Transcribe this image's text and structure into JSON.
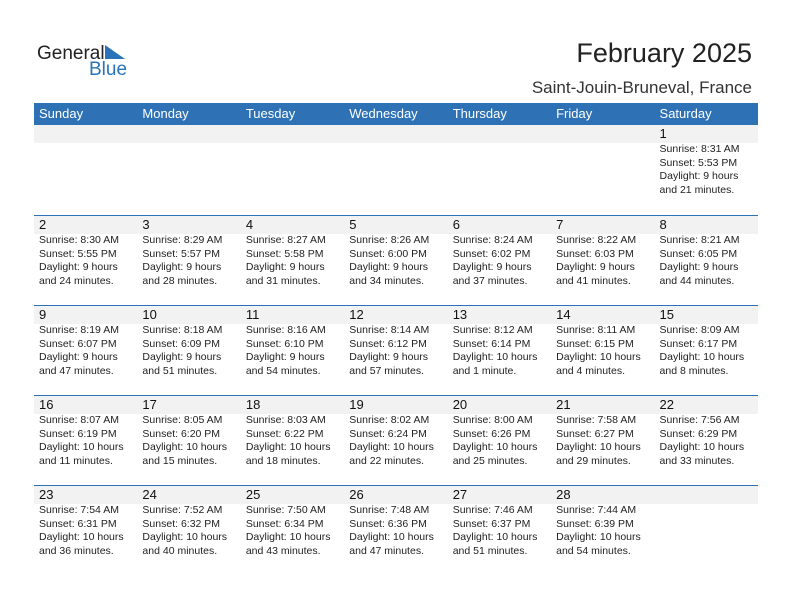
{
  "logo": {
    "general": "General",
    "blue": "Blue"
  },
  "title": "February 2025",
  "location": "Saint-Jouin-Bruneval, France",
  "colors": {
    "accent": "#2e72b5",
    "band": "#f2f2f2"
  },
  "weekdays": [
    "Sunday",
    "Monday",
    "Tuesday",
    "Wednesday",
    "Thursday",
    "Friday",
    "Saturday"
  ],
  "weeks": [
    [
      null,
      null,
      null,
      null,
      null,
      null,
      {
        "day": "1",
        "sunrise": "Sunrise: 8:31 AM",
        "sunset": "Sunset: 5:53 PM",
        "daylight": "Daylight: 9 hours",
        "minutes": "and 21 minutes."
      }
    ],
    [
      {
        "day": "2",
        "sunrise": "Sunrise: 8:30 AM",
        "sunset": "Sunset: 5:55 PM",
        "daylight": "Daylight: 9 hours",
        "minutes": "and 24 minutes."
      },
      {
        "day": "3",
        "sunrise": "Sunrise: 8:29 AM",
        "sunset": "Sunset: 5:57 PM",
        "daylight": "Daylight: 9 hours",
        "minutes": "and 28 minutes."
      },
      {
        "day": "4",
        "sunrise": "Sunrise: 8:27 AM",
        "sunset": "Sunset: 5:58 PM",
        "daylight": "Daylight: 9 hours",
        "minutes": "and 31 minutes."
      },
      {
        "day": "5",
        "sunrise": "Sunrise: 8:26 AM",
        "sunset": "Sunset: 6:00 PM",
        "daylight": "Daylight: 9 hours",
        "minutes": "and 34 minutes."
      },
      {
        "day": "6",
        "sunrise": "Sunrise: 8:24 AM",
        "sunset": "Sunset: 6:02 PM",
        "daylight": "Daylight: 9 hours",
        "minutes": "and 37 minutes."
      },
      {
        "day": "7",
        "sunrise": "Sunrise: 8:22 AM",
        "sunset": "Sunset: 6:03 PM",
        "daylight": "Daylight: 9 hours",
        "minutes": "and 41 minutes."
      },
      {
        "day": "8",
        "sunrise": "Sunrise: 8:21 AM",
        "sunset": "Sunset: 6:05 PM",
        "daylight": "Daylight: 9 hours",
        "minutes": "and 44 minutes."
      }
    ],
    [
      {
        "day": "9",
        "sunrise": "Sunrise: 8:19 AM",
        "sunset": "Sunset: 6:07 PM",
        "daylight": "Daylight: 9 hours",
        "minutes": "and 47 minutes."
      },
      {
        "day": "10",
        "sunrise": "Sunrise: 8:18 AM",
        "sunset": "Sunset: 6:09 PM",
        "daylight": "Daylight: 9 hours",
        "minutes": "and 51 minutes."
      },
      {
        "day": "11",
        "sunrise": "Sunrise: 8:16 AM",
        "sunset": "Sunset: 6:10 PM",
        "daylight": "Daylight: 9 hours",
        "minutes": "and 54 minutes."
      },
      {
        "day": "12",
        "sunrise": "Sunrise: 8:14 AM",
        "sunset": "Sunset: 6:12 PM",
        "daylight": "Daylight: 9 hours",
        "minutes": "and 57 minutes."
      },
      {
        "day": "13",
        "sunrise": "Sunrise: 8:12 AM",
        "sunset": "Sunset: 6:14 PM",
        "daylight": "Daylight: 10 hours",
        "minutes": "and 1 minute."
      },
      {
        "day": "14",
        "sunrise": "Sunrise: 8:11 AM",
        "sunset": "Sunset: 6:15 PM",
        "daylight": "Daylight: 10 hours",
        "minutes": "and 4 minutes."
      },
      {
        "day": "15",
        "sunrise": "Sunrise: 8:09 AM",
        "sunset": "Sunset: 6:17 PM",
        "daylight": "Daylight: 10 hours",
        "minutes": "and 8 minutes."
      }
    ],
    [
      {
        "day": "16",
        "sunrise": "Sunrise: 8:07 AM",
        "sunset": "Sunset: 6:19 PM",
        "daylight": "Daylight: 10 hours",
        "minutes": "and 11 minutes."
      },
      {
        "day": "17",
        "sunrise": "Sunrise: 8:05 AM",
        "sunset": "Sunset: 6:20 PM",
        "daylight": "Daylight: 10 hours",
        "minutes": "and 15 minutes."
      },
      {
        "day": "18",
        "sunrise": "Sunrise: 8:03 AM",
        "sunset": "Sunset: 6:22 PM",
        "daylight": "Daylight: 10 hours",
        "minutes": "and 18 minutes."
      },
      {
        "day": "19",
        "sunrise": "Sunrise: 8:02 AM",
        "sunset": "Sunset: 6:24 PM",
        "daylight": "Daylight: 10 hours",
        "minutes": "and 22 minutes."
      },
      {
        "day": "20",
        "sunrise": "Sunrise: 8:00 AM",
        "sunset": "Sunset: 6:26 PM",
        "daylight": "Daylight: 10 hours",
        "minutes": "and 25 minutes."
      },
      {
        "day": "21",
        "sunrise": "Sunrise: 7:58 AM",
        "sunset": "Sunset: 6:27 PM",
        "daylight": "Daylight: 10 hours",
        "minutes": "and 29 minutes."
      },
      {
        "day": "22",
        "sunrise": "Sunrise: 7:56 AM",
        "sunset": "Sunset: 6:29 PM",
        "daylight": "Daylight: 10 hours",
        "minutes": "and 33 minutes."
      }
    ],
    [
      {
        "day": "23",
        "sunrise": "Sunrise: 7:54 AM",
        "sunset": "Sunset: 6:31 PM",
        "daylight": "Daylight: 10 hours",
        "minutes": "and 36 minutes."
      },
      {
        "day": "24",
        "sunrise": "Sunrise: 7:52 AM",
        "sunset": "Sunset: 6:32 PM",
        "daylight": "Daylight: 10 hours",
        "minutes": "and 40 minutes."
      },
      {
        "day": "25",
        "sunrise": "Sunrise: 7:50 AM",
        "sunset": "Sunset: 6:34 PM",
        "daylight": "Daylight: 10 hours",
        "minutes": "and 43 minutes."
      },
      {
        "day": "26",
        "sunrise": "Sunrise: 7:48 AM",
        "sunset": "Sunset: 6:36 PM",
        "daylight": "Daylight: 10 hours",
        "minutes": "and 47 minutes."
      },
      {
        "day": "27",
        "sunrise": "Sunrise: 7:46 AM",
        "sunset": "Sunset: 6:37 PM",
        "daylight": "Daylight: 10 hours",
        "minutes": "and 51 minutes."
      },
      {
        "day": "28",
        "sunrise": "Sunrise: 7:44 AM",
        "sunset": "Sunset: 6:39 PM",
        "daylight": "Daylight: 10 hours",
        "minutes": "and 54 minutes."
      },
      null
    ]
  ]
}
